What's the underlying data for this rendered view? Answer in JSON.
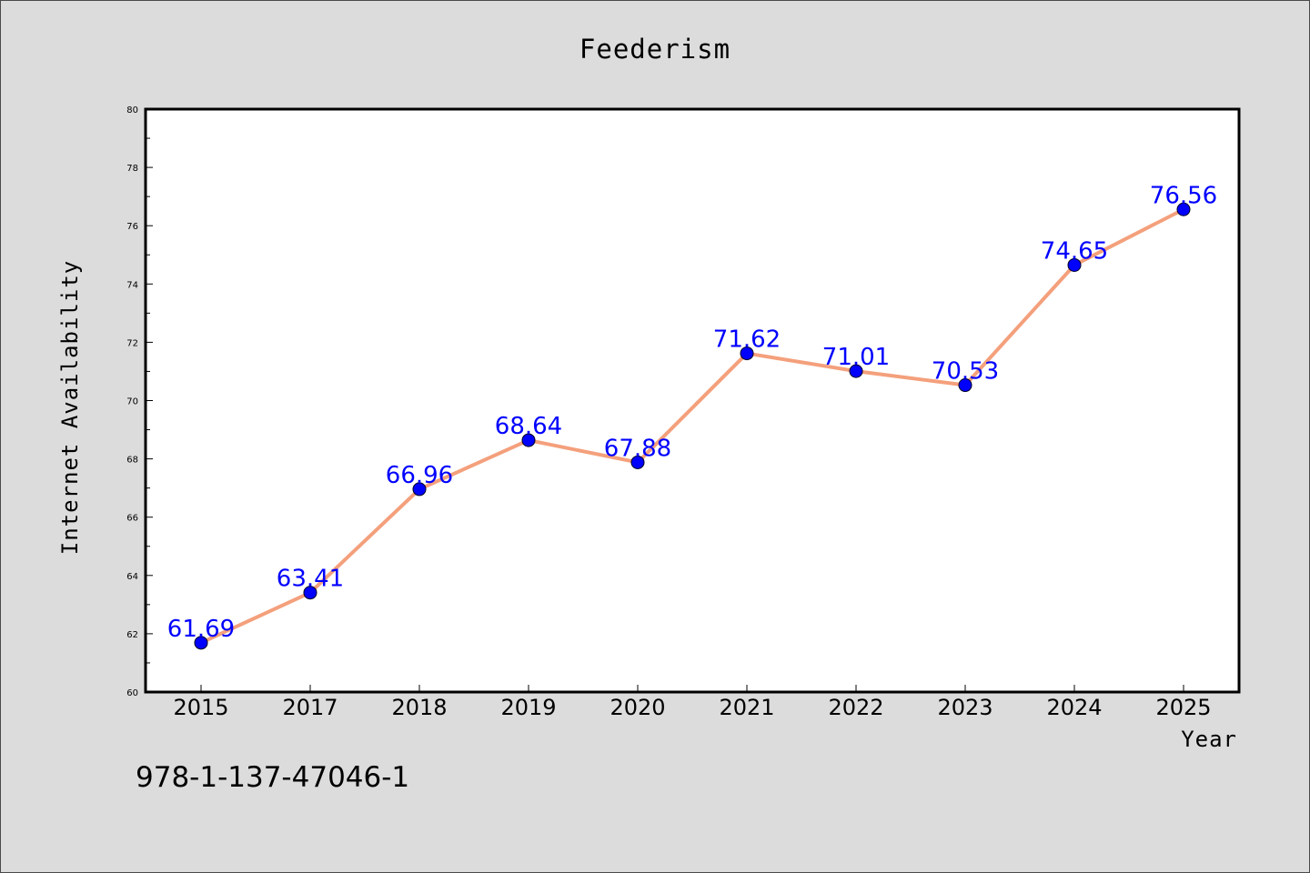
{
  "chart_data": {
    "type": "line",
    "title": "Feederism",
    "xlabel": "Year",
    "ylabel": "Internet Availability",
    "categories": [
      "2015",
      "2017",
      "2018",
      "2019",
      "2020",
      "2021",
      "2022",
      "2023",
      "2024",
      "2025"
    ],
    "series": [
      {
        "values": [
          61.69,
          63.41,
          66.96,
          68.64,
          67.88,
          71.62,
          71.01,
          70.53,
          74.65,
          76.56
        ]
      }
    ],
    "data_labels": [
      "61.69",
      "63.41",
      "66.96",
      "68.64",
      "67.88",
      "71.62",
      "71.01",
      "70.53",
      "74.65",
      "76.56"
    ],
    "ylim": [
      60,
      80
    ],
    "yticks": [
      "60",
      "62",
      "64",
      "66",
      "68",
      "70",
      "72",
      "74",
      "76",
      "78",
      "80"
    ],
    "grid": false,
    "line_color": "#f4a07c",
    "marker_color": "#0000ff",
    "label_color": "#0000ff"
  },
  "footer": {
    "isbn": "978-1-137-47046-1"
  }
}
